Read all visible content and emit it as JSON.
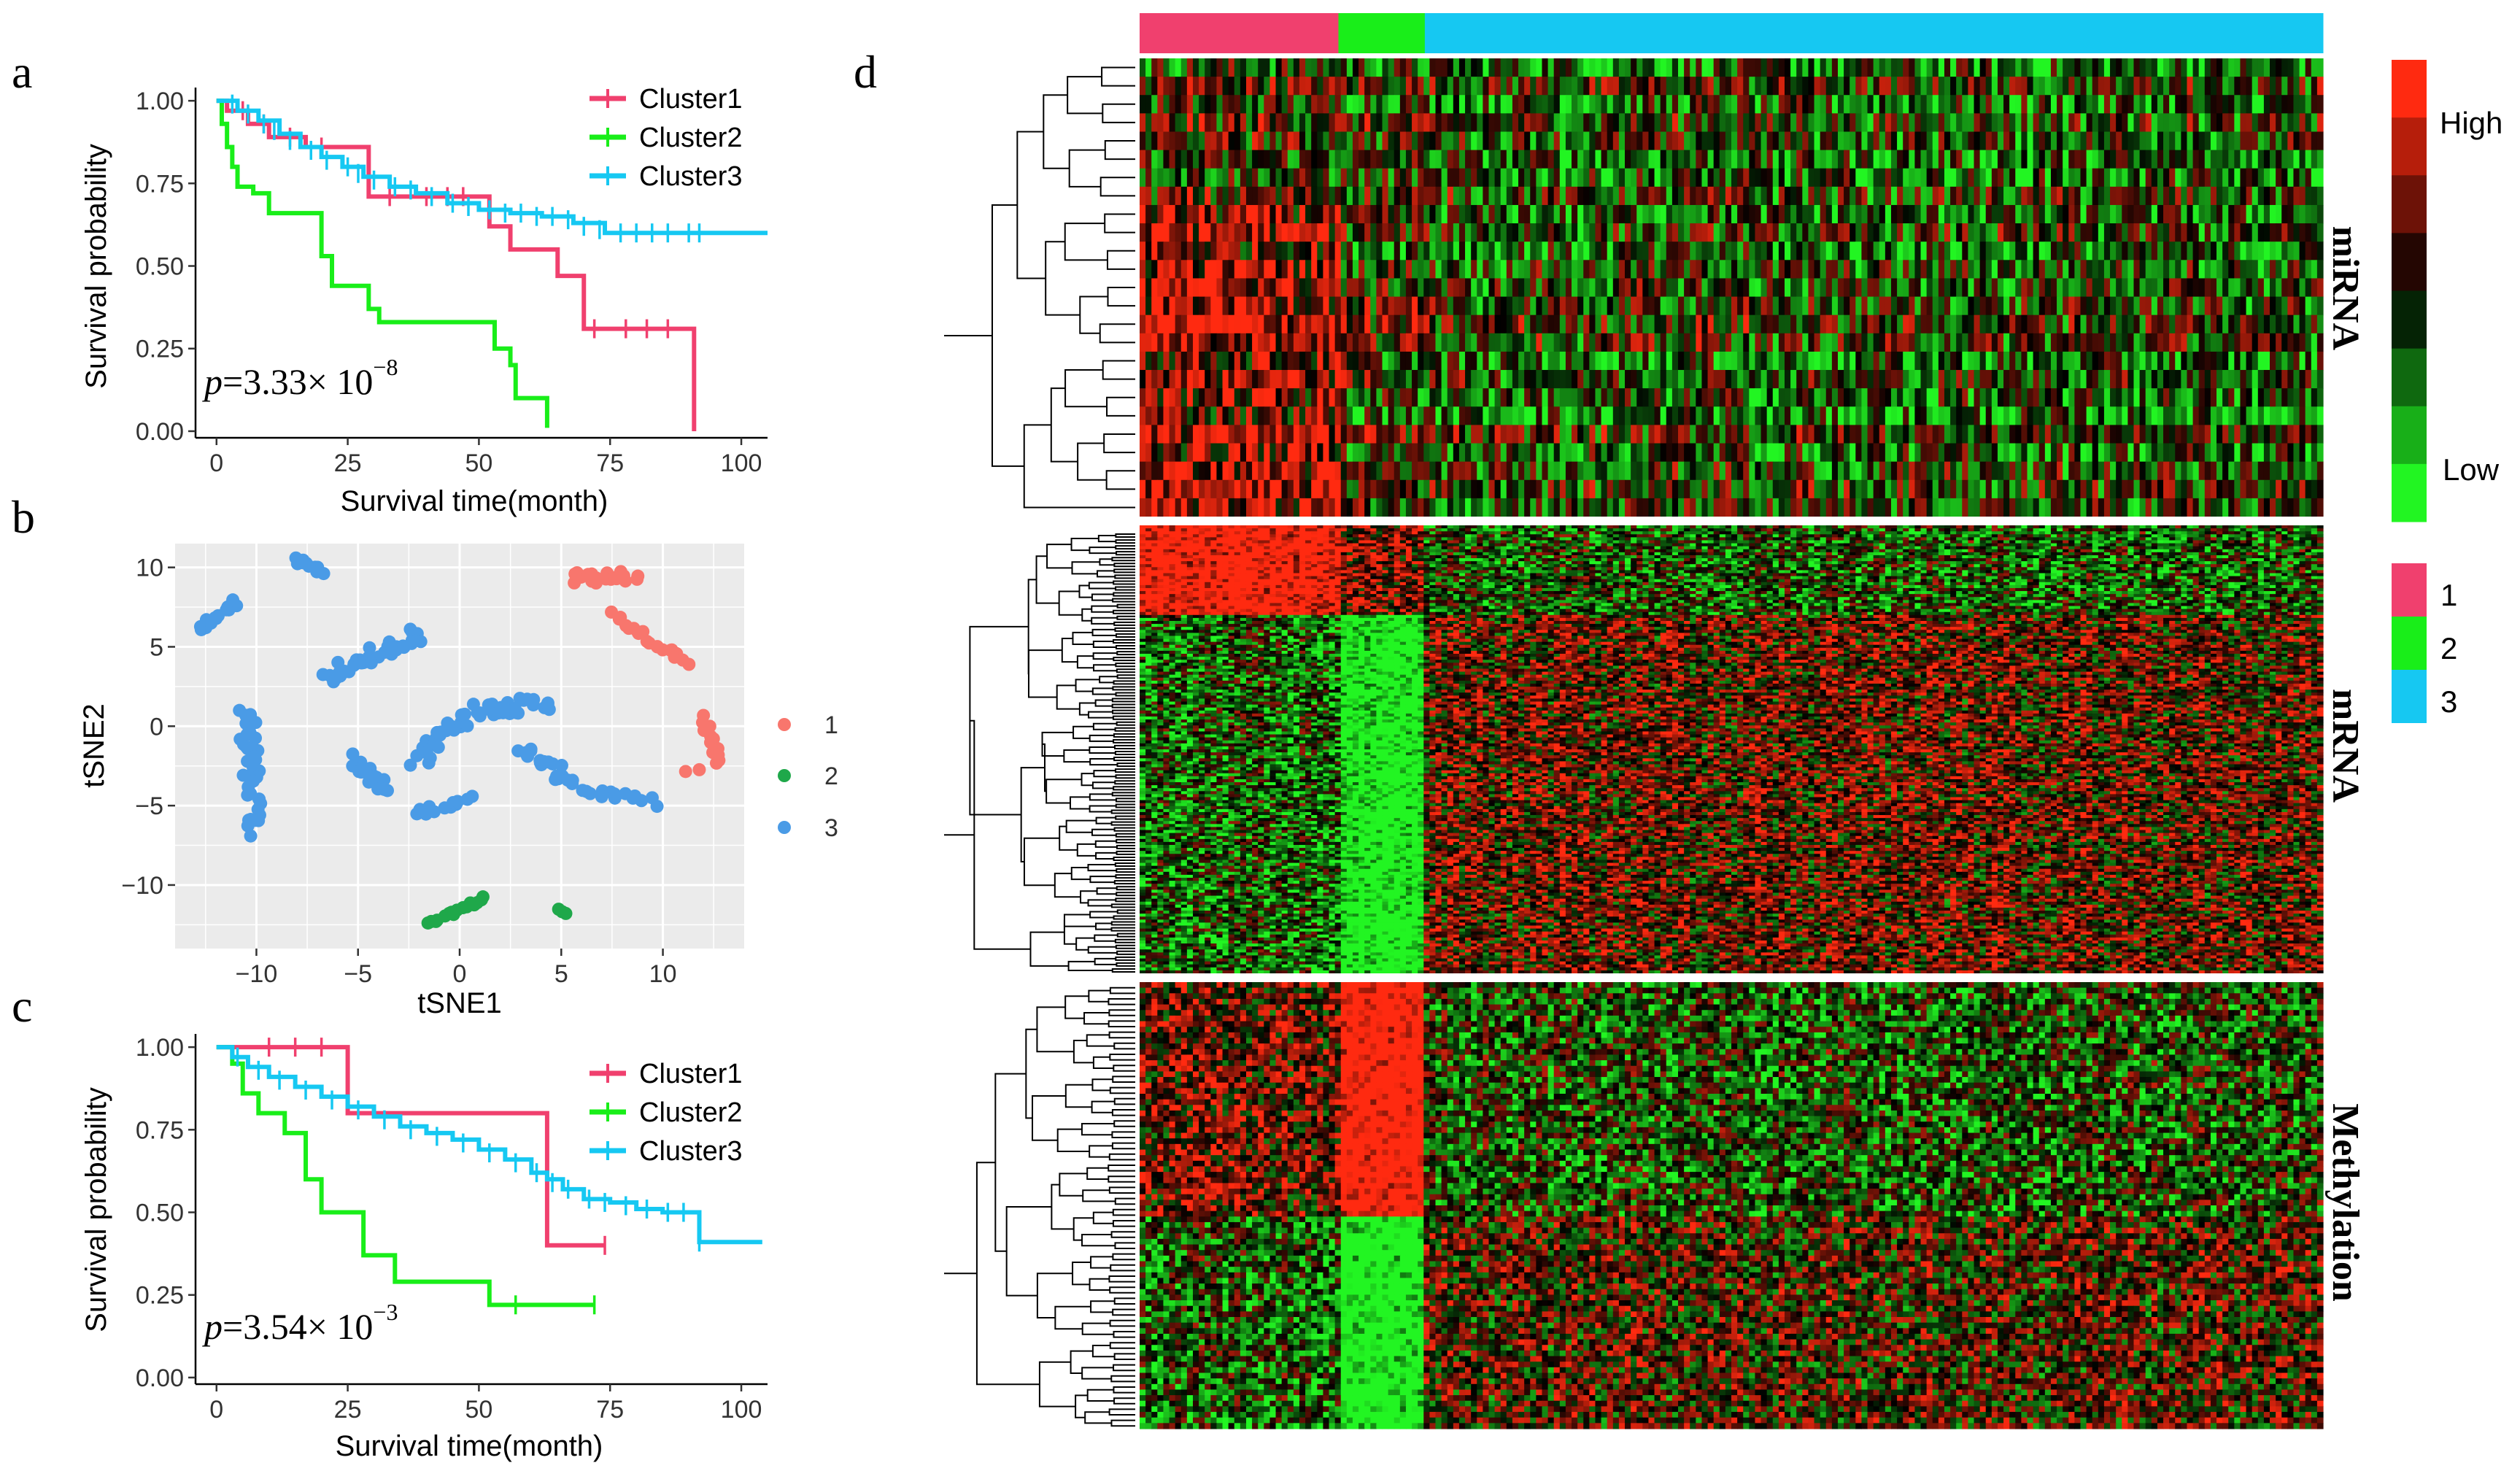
{
  "colors": {
    "cluster1": "#F0406E",
    "cluster2": "#19EE19",
    "cluster3": "#16C8F2",
    "tsne1": "#F8766D",
    "tsne2": "#1FA84A",
    "tsne3": "#4A9BE6",
    "hm_high": "#FF2A10",
    "hm_mid": "#000000",
    "hm_low": "#22F522"
  },
  "panel_letters": {
    "a": "a",
    "b": "b",
    "c": "c",
    "d": "d"
  },
  "chart_data": [
    {
      "id": "a",
      "type": "line",
      "kind": "kaplan-meier",
      "xlabel": "Survival time(month)",
      "ylabel": "Survival probability",
      "xlim": [
        -4,
        105
      ],
      "ylim": [
        -0.02,
        1.04
      ],
      "xticks": [
        "0",
        "25",
        "50",
        "75",
        "100"
      ],
      "xtick_values": [
        0,
        25,
        50,
        75,
        100
      ],
      "yticks": [
        "0.00",
        "0.25",
        "0.50",
        "0.75",
        "1.00"
      ],
      "ytick_values": [
        0,
        0.25,
        0.5,
        0.75,
        1.0
      ],
      "pvalue": {
        "prefix": "p",
        "text": "=3.33× 10",
        "exponent": "−8"
      },
      "legend": [
        "Cluster1",
        "Cluster2",
        "Cluster3"
      ],
      "series": [
        {
          "name": "Cluster1",
          "color_key": "cluster1",
          "steps": [
            [
              0,
              1.0
            ],
            [
              2,
              0.97
            ],
            [
              6,
              0.93
            ],
            [
              10,
              0.89
            ],
            [
              17,
              0.86
            ],
            [
              24,
              0.86
            ],
            [
              29,
              0.71
            ],
            [
              35,
              0.71
            ],
            [
              46,
              0.71
            ],
            [
              52,
              0.62
            ],
            [
              56,
              0.55
            ],
            [
              65,
              0.47
            ],
            [
              70,
              0.31
            ],
            [
              90,
              0.31
            ],
            [
              91,
              0.0
            ]
          ],
          "censors": [
            [
              5,
              0.97
            ],
            [
              9,
              0.93
            ],
            [
              14,
              0.89
            ],
            [
              20,
              0.86
            ],
            [
              33,
              0.71
            ],
            [
              40,
              0.71
            ],
            [
              44,
              0.71
            ],
            [
              47,
              0.71
            ],
            [
              72,
              0.31
            ],
            [
              78,
              0.31
            ],
            [
              82,
              0.31
            ],
            [
              86,
              0.31
            ]
          ]
        },
        {
          "name": "Cluster2",
          "color_key": "cluster2",
          "steps": [
            [
              0,
              1.0
            ],
            [
              1,
              0.93
            ],
            [
              2,
              0.86
            ],
            [
              3,
              0.8
            ],
            [
              4,
              0.74
            ],
            [
              7,
              0.72
            ],
            [
              10,
              0.66
            ],
            [
              20,
              0.53
            ],
            [
              22,
              0.44
            ],
            [
              29,
              0.37
            ],
            [
              31,
              0.33
            ],
            [
              52,
              0.33
            ],
            [
              53,
              0.25
            ],
            [
              56,
              0.2
            ],
            [
              57,
              0.1
            ],
            [
              62,
              0.1
            ],
            [
              63,
              0.01
            ]
          ],
          "censors": []
        },
        {
          "name": "Cluster3",
          "color_key": "cluster3",
          "steps": [
            [
              0,
              1.0
            ],
            [
              4,
              0.97
            ],
            [
              8,
              0.94
            ],
            [
              12,
              0.9
            ],
            [
              16,
              0.86
            ],
            [
              20,
              0.83
            ],
            [
              24,
              0.8
            ],
            [
              28,
              0.77
            ],
            [
              33,
              0.74
            ],
            [
              38,
              0.72
            ],
            [
              44,
              0.69
            ],
            [
              50,
              0.67
            ],
            [
              56,
              0.66
            ],
            [
              62,
              0.65
            ],
            [
              68,
              0.63
            ],
            [
              74,
              0.6
            ],
            [
              105,
              0.6
            ]
          ],
          "censors": [
            [
              3,
              0.99
            ],
            [
              6,
              0.96
            ],
            [
              9,
              0.93
            ],
            [
              11,
              0.91
            ],
            [
              14,
              0.88
            ],
            [
              18,
              0.85
            ],
            [
              21,
              0.82
            ],
            [
              25,
              0.8
            ],
            [
              27,
              0.78
            ],
            [
              30,
              0.76
            ],
            [
              34,
              0.74
            ],
            [
              37,
              0.73
            ],
            [
              41,
              0.71
            ],
            [
              45,
              0.69
            ],
            [
              48,
              0.68
            ],
            [
              52,
              0.67
            ],
            [
              55,
              0.66
            ],
            [
              58,
              0.66
            ],
            [
              61,
              0.65
            ],
            [
              64,
              0.65
            ],
            [
              67,
              0.64
            ],
            [
              70,
              0.62
            ],
            [
              73,
              0.61
            ],
            [
              77,
              0.6
            ],
            [
              80,
              0.6
            ],
            [
              83,
              0.6
            ],
            [
              86,
              0.6
            ],
            [
              90,
              0.6
            ],
            [
              92,
              0.6
            ]
          ]
        }
      ]
    },
    {
      "id": "b",
      "type": "scatter",
      "xlabel": "tSNE1",
      "ylabel": "tSNE2",
      "xlim": [
        -14,
        14
      ],
      "ylim": [
        -14,
        11.5
      ],
      "xticks": [
        "−10",
        "−5",
        "0",
        "5",
        "10"
      ],
      "xtick_values": [
        -10,
        -5,
        0,
        5,
        10
      ],
      "yticks": [
        "−10",
        "−5",
        "0",
        "5",
        "10"
      ],
      "ytick_values": [
        -10,
        -5,
        0,
        5,
        10
      ],
      "legend": [
        "1",
        "2",
        "3"
      ],
      "series": [
        {
          "name": "1",
          "color_key": "tsne1",
          "clusters": [
            [
              [
                5.5,
                9.2
              ],
              [
                8.5,
                9.5
              ],
              20,
              0.9
            ],
            [
              [
                7.5,
                7.0
              ],
              [
                11.2,
                4.0
              ],
              20,
              0.5
            ],
            [
              [
                12.0,
                0.5
              ],
              [
                12.8,
                -2.5
              ],
              12,
              0.4
            ],
            [
              [
                11.2,
                -2.8
              ],
              [
                11.8,
                -2.8
              ],
              2,
              0.2
            ]
          ]
        },
        {
          "name": "2",
          "color_key": "tsne2",
          "clusters": [
            [
              [
                -1.5,
                -12.5
              ],
              [
                1.2,
                -10.8
              ],
              16,
              0.3
            ],
            [
              [
                4.9,
                -11.5
              ],
              [
                5.3,
                -11.8
              ],
              3,
              0.2
            ]
          ]
        },
        {
          "name": "3",
          "color_key": "tsne3",
          "clusters": [
            [
              [
                -12.9,
                6.0
              ],
              [
                -11.0,
                7.8
              ],
              14,
              0.4
            ],
            [
              [
                -8.0,
                10.4
              ],
              [
                -6.8,
                9.8
              ],
              10,
              0.4
            ],
            [
              [
                -10.5,
                1.0
              ],
              [
                -10.0,
                -6.5
              ],
              40,
              0.9
            ],
            [
              [
                -6.5,
                3.0
              ],
              [
                -2.0,
                5.8
              ],
              40,
              0.9
            ],
            [
              [
                -5.2,
                -2.0
              ],
              [
                -3.5,
                -4.0
              ],
              20,
              0.7
            ],
            [
              [
                -2.0,
                -2.0
              ],
              [
                0.0,
                0.5
              ],
              25,
              1.0
            ],
            [
              [
                -2.0,
                -5.5
              ],
              [
                0.5,
                -4.5
              ],
              12,
              0.5
            ],
            [
              [
                0.5,
                1.0
              ],
              [
                4.5,
                1.5
              ],
              30,
              0.9
            ],
            [
              [
                3.0,
                -1.5
              ],
              [
                5.5,
                -3.5
              ],
              20,
              0.8
            ],
            [
              [
                6.0,
                -4.0
              ],
              [
                9.5,
                -4.8
              ],
              14,
              0.5
            ]
          ]
        }
      ]
    },
    {
      "id": "c",
      "type": "line",
      "kind": "kaplan-meier",
      "xlabel": "Survival time(month)",
      "ylabel": "Survival probability",
      "xlim": [
        -4,
        105
      ],
      "ylim": [
        -0.02,
        1.04
      ],
      "xticks": [
        "0",
        "25",
        "50",
        "75",
        "100"
      ],
      "xtick_values": [
        0,
        25,
        50,
        75,
        100
      ],
      "yticks": [
        "0.00",
        "0.25",
        "0.50",
        "0.75",
        "1.00"
      ],
      "ytick_values": [
        0,
        0.25,
        0.5,
        0.75,
        1.0
      ],
      "pvalue": {
        "prefix": "p",
        "text": "=3.54× 10",
        "exponent": "−3"
      },
      "legend": [
        "Cluster1",
        "Cluster2",
        "Cluster3"
      ],
      "series": [
        {
          "name": "Cluster1",
          "color_key": "cluster1",
          "steps": [
            [
              0,
              1.0
            ],
            [
              24,
              1.0
            ],
            [
              25,
              0.8
            ],
            [
              62,
              0.8
            ],
            [
              63,
              0.4
            ],
            [
              74,
              0.4
            ]
          ],
          "censors": [
            [
              10,
              1.0
            ],
            [
              15,
              1.0
            ],
            [
              20,
              1.0
            ],
            [
              74,
              0.4
            ]
          ]
        },
        {
          "name": "Cluster2",
          "color_key": "cluster2",
          "steps": [
            [
              0,
              1.0
            ],
            [
              3,
              0.95
            ],
            [
              5,
              0.86
            ],
            [
              8,
              0.8
            ],
            [
              13,
              0.74
            ],
            [
              17,
              0.6
            ],
            [
              20,
              0.5
            ],
            [
              28,
              0.37
            ],
            [
              34,
              0.29
            ],
            [
              51,
              0.29
            ],
            [
              52,
              0.22
            ],
            [
              72,
              0.22
            ]
          ],
          "censors": [
            [
              57,
              0.22
            ],
            [
              72,
              0.22
            ]
          ]
        },
        {
          "name": "Cluster3",
          "color_key": "cluster3",
          "steps": [
            [
              0,
              1.0
            ],
            [
              3,
              0.97
            ],
            [
              6,
              0.94
            ],
            [
              10,
              0.91
            ],
            [
              15,
              0.88
            ],
            [
              20,
              0.85
            ],
            [
              25,
              0.82
            ],
            [
              30,
              0.79
            ],
            [
              35,
              0.76
            ],
            [
              40,
              0.74
            ],
            [
              45,
              0.72
            ],
            [
              50,
              0.69
            ],
            [
              55,
              0.66
            ],
            [
              60,
              0.62
            ],
            [
              63,
              0.6
            ],
            [
              66,
              0.57
            ],
            [
              70,
              0.54
            ],
            [
              75,
              0.53
            ],
            [
              80,
              0.51
            ],
            [
              85,
              0.5
            ],
            [
              91,
              0.5
            ],
            [
              92,
              0.41
            ],
            [
              104,
              0.41
            ]
          ],
          "censors": [
            [
              4,
              0.97
            ],
            [
              8,
              0.93
            ],
            [
              12,
              0.9
            ],
            [
              17,
              0.87
            ],
            [
              22,
              0.84
            ],
            [
              27,
              0.81
            ],
            [
              32,
              0.78
            ],
            [
              37,
              0.75
            ],
            [
              42,
              0.73
            ],
            [
              47,
              0.71
            ],
            [
              52,
              0.68
            ],
            [
              57,
              0.65
            ],
            [
              61,
              0.62
            ],
            [
              64,
              0.59
            ],
            [
              67,
              0.57
            ],
            [
              71,
              0.54
            ],
            [
              74,
              0.53
            ],
            [
              78,
              0.52
            ],
            [
              82,
              0.51
            ],
            [
              86,
              0.5
            ],
            [
              89,
              0.5
            ],
            [
              92,
              0.41
            ]
          ]
        }
      ]
    },
    {
      "id": "d",
      "type": "heatmap",
      "column_annotation": [
        {
          "cluster": "1",
          "color_key": "cluster1",
          "fraction": 0.168
        },
        {
          "cluster": "2",
          "color_key": "cluster2",
          "fraction": 0.073
        },
        {
          "cluster": "3",
          "color_key": "cluster3",
          "fraction": 0.759
        }
      ],
      "blocks": [
        {
          "label": "miRNA",
          "rows": 25
        },
        {
          "label": "mRNA",
          "rows": 150
        },
        {
          "label": "Methylation",
          "rows": 80
        }
      ],
      "expression_legend": [
        "High",
        "Low"
      ],
      "cluster_legend": [
        "1",
        "2",
        "3"
      ]
    }
  ]
}
